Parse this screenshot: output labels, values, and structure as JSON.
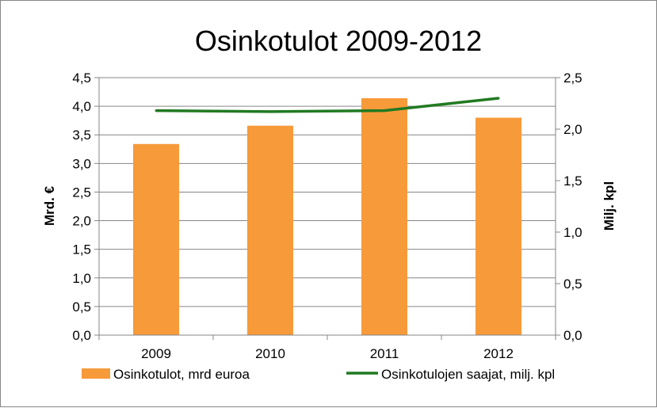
{
  "chart_data": {
    "type": "bar",
    "title": "Osinkotulot 2009-2012",
    "categories": [
      "2009",
      "2010",
      "2011",
      "2012"
    ],
    "ylabel": "Mrd. €",
    "y2label": "Milj. kpl",
    "ylim": [
      0,
      4.5
    ],
    "y2lim": [
      0,
      2.5
    ],
    "yticks": [
      "0,0",
      "0,5",
      "1,0",
      "1,5",
      "2,0",
      "2,5",
      "3,0",
      "3,5",
      "4,0",
      "4,5"
    ],
    "y2ticks": [
      "0,0",
      "0,5",
      "1,0",
      "1,5",
      "2,0",
      "2,5"
    ],
    "grid": true,
    "legend_position": "bottom",
    "series": [
      {
        "name": "Osinkotulot, mrd euroa",
        "type": "bar",
        "axis": "left",
        "color": "#F79A3A",
        "values": [
          3.34,
          3.66,
          4.14,
          3.8
        ]
      },
      {
        "name": "Osinkotulojen saajat, milj. kpl",
        "type": "line",
        "axis": "right",
        "color": "#217A21",
        "values": [
          2.18,
          2.17,
          2.18,
          2.3
        ]
      }
    ]
  }
}
